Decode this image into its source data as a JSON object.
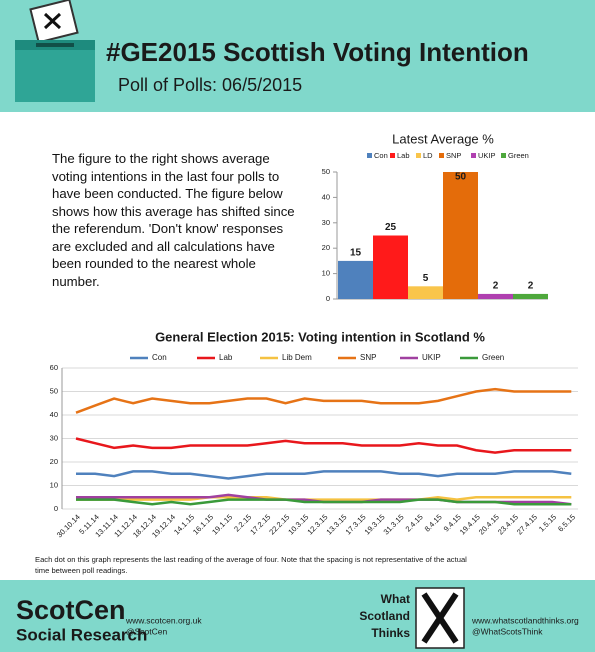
{
  "header": {
    "title": "#GE2015 Scottish Voting Intention",
    "subtitle": "Poll of Polls: 06/5/2015"
  },
  "intro": "The figure to the right shows average voting intentions in the last four polls to have been conducted. The figure below shows how this average has shifted since the referendum. 'Don't know' responses are excluded  and all calculations have been rounded to the nearest whole number.",
  "chart_data": [
    {
      "type": "bar",
      "title": "Latest Average %",
      "categories": [
        "Con",
        "Lab",
        "LD",
        "SNP",
        "UKIP",
        "Green"
      ],
      "values": [
        15,
        25,
        5,
        50,
        2,
        2
      ],
      "colors": [
        "#4f81bd",
        "#ff1a1a",
        "#f9c54b",
        "#e46c0a",
        "#b040b0",
        "#4ea83c"
      ],
      "ylim": [
        0,
        50
      ],
      "yticks": [
        0,
        10,
        20,
        30,
        40,
        50
      ],
      "legend": "top"
    },
    {
      "type": "line",
      "title": "General Election 2015: Voting intention in Scotland %",
      "categories": [
        "30.10.14",
        "5.11.14",
        "13.11.14",
        "11.12.14",
        "18.12.14",
        "19.12.14",
        "14.1.15",
        "16.1.15",
        "19.1.15",
        "2.2.15",
        "17.2.15",
        "22.2.15",
        "10.3.15",
        "12.3.15",
        "13.3.15",
        "17.3.15",
        "19.3.15",
        "31.3.15",
        "2.4.15",
        "8.4.15",
        "9.4.15",
        "19.4.15",
        "20.4.15",
        "23.4.15",
        "27.4.15",
        "1.5.15",
        "6.5.15"
      ],
      "series": [
        {
          "name": "Con",
          "color": "#4f81bd",
          "values": [
            15,
            15,
            14,
            16,
            16,
            15,
            15,
            14,
            13,
            14,
            15,
            15,
            15,
            16,
            16,
            16,
            16,
            15,
            15,
            14,
            15,
            15,
            15,
            16,
            16,
            16,
            15
          ]
        },
        {
          "name": "Lab",
          "color": "#e8171c",
          "values": [
            30,
            28,
            26,
            27,
            26,
            26,
            27,
            27,
            27,
            27,
            28,
            29,
            28,
            28,
            28,
            27,
            27,
            27,
            28,
            27,
            27,
            25,
            24,
            25,
            25,
            25,
            25
          ]
        },
        {
          "name": "Lib Dem",
          "color": "#f5c242",
          "values": [
            4,
            4,
            4,
            4,
            4,
            4,
            4,
            5,
            5,
            5,
            5,
            4,
            4,
            4,
            4,
            4,
            4,
            4,
            4,
            5,
            4,
            5,
            5,
            5,
            5,
            5,
            5
          ]
        },
        {
          "name": "SNP",
          "color": "#e67316",
          "values": [
            41,
            44,
            47,
            45,
            47,
            46,
            45,
            45,
            46,
            47,
            47,
            45,
            47,
            46,
            46,
            46,
            45,
            45,
            45,
            46,
            48,
            50,
            51,
            50,
            50,
            50,
            50
          ]
        },
        {
          "name": "UKIP",
          "color": "#a040a0",
          "values": [
            5,
            5,
            5,
            5,
            5,
            5,
            5,
            5,
            6,
            5,
            4,
            4,
            4,
            3,
            3,
            3,
            4,
            4,
            4,
            4,
            3,
            3,
            3,
            3,
            3,
            3,
            2
          ]
        },
        {
          "name": "Green",
          "color": "#3a9a3a",
          "values": [
            4,
            4,
            4,
            3,
            2,
            3,
            2,
            3,
            4,
            4,
            4,
            4,
            3,
            3,
            3,
            3,
            3,
            3,
            4,
            4,
            3,
            3,
            3,
            2,
            2,
            2,
            2
          ]
        }
      ],
      "ylim": [
        0,
        60
      ],
      "yticks": [
        0,
        10,
        20,
        30,
        40,
        50,
        60
      ],
      "grid": true,
      "legend": "top"
    }
  ],
  "note": [
    "Each dot on this graph represents the last reading of the average of four. Note that the spacing is not representative of the actual",
    "time between poll readings."
  ],
  "footer": {
    "scotcen_name": "ScotCen",
    "scotcen_sub": "Social Research",
    "scotcen_url": "www.scotcen.org.uk",
    "scotcen_twitter": "@ScotCen",
    "wst_name": [
      "What",
      "Scotland",
      "Thinks"
    ],
    "wst_url": "www.whatscotlandthinks.org",
    "wst_twitter": "@WhatScotsThink"
  }
}
